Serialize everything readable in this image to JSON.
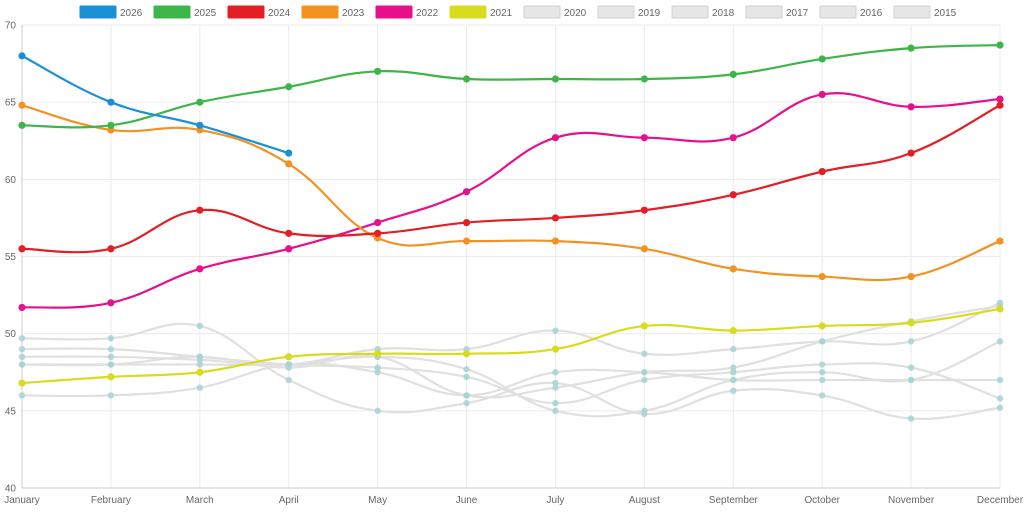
{
  "chart_data": {
    "type": "line",
    "title": "",
    "xlabel": "",
    "ylabel": "",
    "categories": [
      "January",
      "February",
      "March",
      "April",
      "May",
      "June",
      "July",
      "August",
      "September",
      "October",
      "November",
      "December"
    ],
    "ylim": [
      40,
      70
    ],
    "yticks": [
      40,
      45,
      50,
      55,
      60,
      65,
      70
    ],
    "grid": true,
    "legend_position": "top-center",
    "series": [
      {
        "name": "2026",
        "color": "#1a91d6",
        "active": true,
        "values": [
          68.0,
          65.0,
          63.5,
          61.7,
          null,
          null,
          null,
          null,
          null,
          null,
          null,
          null
        ]
      },
      {
        "name": "2025",
        "color": "#3cb649",
        "active": true,
        "values": [
          63.5,
          63.5,
          65.0,
          66.0,
          67.0,
          66.5,
          66.5,
          66.5,
          66.8,
          67.8,
          68.5,
          68.7
        ]
      },
      {
        "name": "2024",
        "color": "#e31e24",
        "active": true,
        "values": [
          55.5,
          55.5,
          58.0,
          56.5,
          56.5,
          57.2,
          57.5,
          58.0,
          59.0,
          60.5,
          61.7,
          64.8
        ]
      },
      {
        "name": "2023",
        "color": "#f39221",
        "active": true,
        "values": [
          64.8,
          63.2,
          63.2,
          61.0,
          56.2,
          56.0,
          56.0,
          55.5,
          54.2,
          53.7,
          53.7,
          56.0
        ]
      },
      {
        "name": "2022",
        "color": "#e60f8c",
        "active": true,
        "values": [
          51.7,
          52.0,
          54.2,
          55.5,
          57.2,
          59.2,
          62.7,
          62.7,
          62.7,
          65.5,
          64.7,
          65.2
        ]
      },
      {
        "name": "2021",
        "color": "#d8dc1e",
        "active": true,
        "values": [
          46.8,
          47.2,
          47.5,
          48.5,
          48.7,
          48.7,
          49.0,
          50.5,
          50.2,
          50.5,
          50.7,
          51.6
        ]
      },
      {
        "name": "2020",
        "color": "#dddddd",
        "active": false,
        "values": [
          48.0,
          48.0,
          48.5,
          47.8,
          48.5,
          46.0,
          46.5,
          47.5,
          47.8,
          49.5,
          50.8,
          51.8
        ]
      },
      {
        "name": "2019",
        "color": "#dddddd",
        "active": false,
        "values": [
          48.5,
          48.5,
          48.3,
          48.0,
          49.0,
          49.0,
          50.2,
          48.7,
          49.0,
          49.5,
          49.5,
          52.0
        ]
      },
      {
        "name": "2018",
        "color": "#dddddd",
        "active": false,
        "values": [
          49.0,
          49.0,
          48.5,
          48.0,
          47.8,
          47.2,
          45.5,
          47.0,
          47.5,
          48.0,
          47.8,
          45.8
        ]
      },
      {
        "name": "2017",
        "color": "#dddddd",
        "active": false,
        "values": [
          46.0,
          46.0,
          46.5,
          48.0,
          47.5,
          46.0,
          47.5,
          47.5,
          47.0,
          47.0,
          47.0,
          47.0
        ]
      },
      {
        "name": "2016",
        "color": "#dddddd",
        "active": false,
        "values": [
          49.7,
          49.7,
          50.5,
          47.0,
          45.0,
          45.5,
          46.8,
          44.8,
          46.3,
          46.0,
          44.5,
          45.2
        ]
      },
      {
        "name": "2015",
        "color": "#dddddd",
        "active": false,
        "values": [
          48.0,
          48.0,
          48.0,
          48.0,
          48.5,
          47.7,
          45.0,
          45.0,
          47.0,
          47.5,
          47.0,
          49.5
        ]
      }
    ],
    "inactive_marker_color": "#a6d3d3"
  }
}
